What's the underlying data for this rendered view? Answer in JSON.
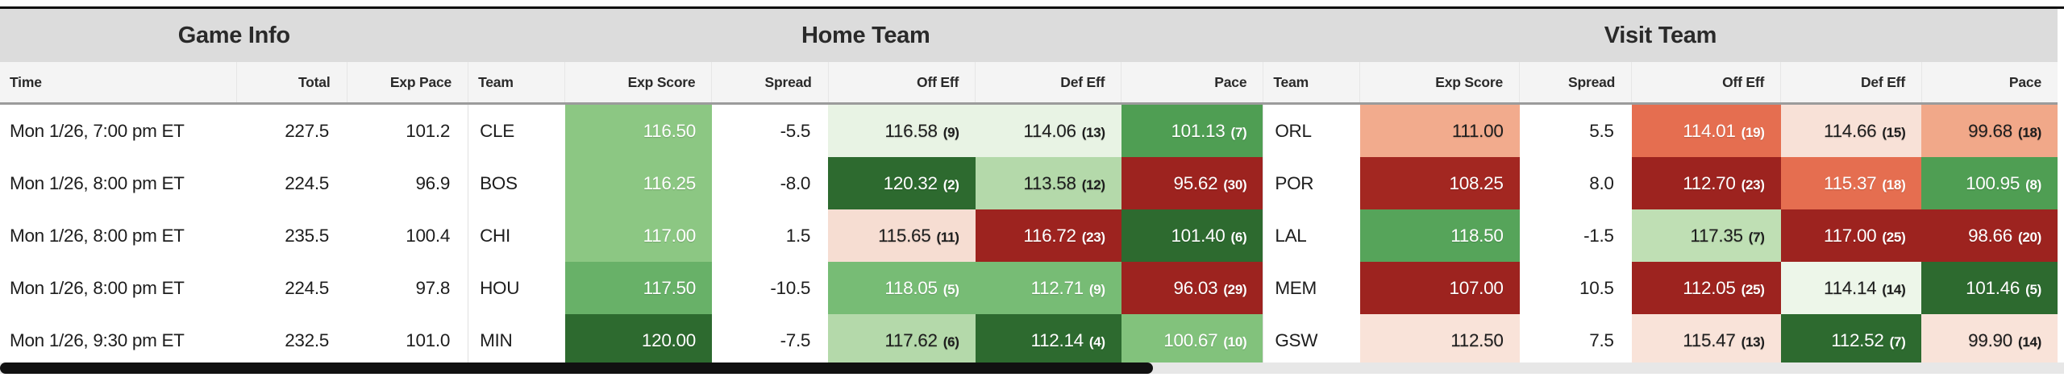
{
  "sections": {
    "game_info": "Game Info",
    "home": "Home Team",
    "visit": "Visit Team"
  },
  "columns": {
    "time": "Time",
    "total": "Total",
    "exp_pace": "Exp Pace",
    "team": "Team",
    "exp_score": "Exp Score",
    "spread": "Spread",
    "off_eff": "Off Eff",
    "def_eff": "Def Eff",
    "pace": "Pace"
  },
  "rows": [
    {
      "time": "Mon 1/26, 7:00 pm ET",
      "total": "227.5",
      "exp_pace": "101.2",
      "home": {
        "team": "CLE",
        "exp_score": {
          "value": "116.50",
          "bg": "#8cc783",
          "fg": "#ffffff"
        },
        "spread": "-5.5",
        "off_eff": {
          "value": "116.58",
          "rank": "(9)",
          "bg": "#e8f3e4",
          "fg": "#1d1d1d"
        },
        "def_eff": {
          "value": "114.06",
          "rank": "(13)",
          "bg": "#e8f3e4",
          "fg": "#1d1d1d"
        },
        "pace": {
          "value": "101.13",
          "rank": "(7)",
          "bg": "#4f9e53",
          "fg": "#ffffff"
        }
      },
      "visit": {
        "team": "ORL",
        "exp_score": {
          "value": "111.00",
          "bg": "#f2ab8d",
          "fg": "#1d1d1d"
        },
        "spread": "5.5",
        "off_eff": {
          "value": "114.01",
          "rank": "(19)",
          "bg": "#e56e50",
          "fg": "#ffffff"
        },
        "def_eff": {
          "value": "114.66",
          "rank": "(15)",
          "bg": "#f8e1d7",
          "fg": "#1d1d1d"
        },
        "pace": {
          "value": "99.68",
          "rank": "(18)",
          "bg": "#f1a889",
          "fg": "#1d1d1d"
        }
      }
    },
    {
      "time": "Mon 1/26, 8:00 pm ET",
      "total": "224.5",
      "exp_pace": "96.9",
      "home": {
        "team": "BOS",
        "exp_score": {
          "value": "116.25",
          "bg": "#8cc783",
          "fg": "#ffffff"
        },
        "spread": "-8.0",
        "off_eff": {
          "value": "120.32",
          "rank": "(2)",
          "bg": "#2d6a2f",
          "fg": "#ffffff"
        },
        "def_eff": {
          "value": "113.58",
          "rank": "(12)",
          "bg": "#b4d9aa",
          "fg": "#1d1d1d"
        },
        "pace": {
          "value": "95.62",
          "rank": "(30)",
          "bg": "#9d231f",
          "fg": "#ffffff"
        }
      },
      "visit": {
        "team": "POR",
        "exp_score": {
          "value": "108.25",
          "bg": "#a32721",
          "fg": "#ffffff"
        },
        "spread": "8.0",
        "off_eff": {
          "value": "112.70",
          "rank": "(23)",
          "bg": "#9d231f",
          "fg": "#ffffff"
        },
        "def_eff": {
          "value": "115.37",
          "rank": "(18)",
          "bg": "#e56e50",
          "fg": "#ffffff"
        },
        "pace": {
          "value": "100.95",
          "rank": "(8)",
          "bg": "#4f9e53",
          "fg": "#ffffff"
        }
      }
    },
    {
      "time": "Mon 1/26, 8:00 pm ET",
      "total": "235.5",
      "exp_pace": "100.4",
      "home": {
        "team": "CHI",
        "exp_score": {
          "value": "117.00",
          "bg": "#8cc783",
          "fg": "#ffffff"
        },
        "spread": "1.5",
        "off_eff": {
          "value": "115.65",
          "rank": "(11)",
          "bg": "#f6ddd2",
          "fg": "#1d1d1d"
        },
        "def_eff": {
          "value": "116.72",
          "rank": "(23)",
          "bg": "#9d231f",
          "fg": "#ffffff"
        },
        "pace": {
          "value": "101.40",
          "rank": "(6)",
          "bg": "#2d6a2f",
          "fg": "#ffffff"
        }
      },
      "visit": {
        "team": "LAL",
        "exp_score": {
          "value": "118.50",
          "bg": "#56a45a",
          "fg": "#ffffff"
        },
        "spread": "-1.5",
        "off_eff": {
          "value": "117.35",
          "rank": "(7)",
          "bg": "#bfdfb4",
          "fg": "#1d1d1d"
        },
        "def_eff": {
          "value": "117.00",
          "rank": "(25)",
          "bg": "#9d231f",
          "fg": "#ffffff"
        },
        "pace": {
          "value": "98.66",
          "rank": "(20)",
          "bg": "#9d231f",
          "fg": "#ffffff"
        }
      }
    },
    {
      "time": "Mon 1/26, 8:00 pm ET",
      "total": "224.5",
      "exp_pace": "97.8",
      "home": {
        "team": "HOU",
        "exp_score": {
          "value": "117.50",
          "bg": "#68b168",
          "fg": "#ffffff"
        },
        "spread": "-10.5",
        "off_eff": {
          "value": "118.05",
          "rank": "(5)",
          "bg": "#77bc75",
          "fg": "#ffffff"
        },
        "def_eff": {
          "value": "112.71",
          "rank": "(9)",
          "bg": "#77bc75",
          "fg": "#ffffff"
        },
        "pace": {
          "value": "96.03",
          "rank": "(29)",
          "bg": "#9d231f",
          "fg": "#ffffff"
        }
      },
      "visit": {
        "team": "MEM",
        "exp_score": {
          "value": "107.00",
          "bg": "#9d231f",
          "fg": "#ffffff"
        },
        "spread": "10.5",
        "off_eff": {
          "value": "112.05",
          "rank": "(25)",
          "bg": "#9d231f",
          "fg": "#ffffff"
        },
        "def_eff": {
          "value": "114.14",
          "rank": "(14)",
          "bg": "#edf6e9",
          "fg": "#1d1d1d"
        },
        "pace": {
          "value": "101.46",
          "rank": "(5)",
          "bg": "#2d6a2f",
          "fg": "#ffffff"
        }
      }
    },
    {
      "time": "Mon 1/26, 9:30 pm ET",
      "total": "232.5",
      "exp_pace": "101.0",
      "home": {
        "team": "MIN",
        "exp_score": {
          "value": "120.00",
          "bg": "#2d6a2f",
          "fg": "#ffffff"
        },
        "spread": "-7.5",
        "off_eff": {
          "value": "117.62",
          "rank": "(6)",
          "bg": "#b4d9aa",
          "fg": "#1d1d1d"
        },
        "def_eff": {
          "value": "112.14",
          "rank": "(4)",
          "bg": "#2d6a2f",
          "fg": "#ffffff"
        },
        "pace": {
          "value": "100.67",
          "rank": "(10)",
          "bg": "#82c27c",
          "fg": "#ffffff"
        }
      },
      "visit": {
        "team": "GSW",
        "exp_score": {
          "value": "112.50",
          "bg": "#f9e3d9",
          "fg": "#1d1d1d"
        },
        "spread": "7.5",
        "off_eff": {
          "value": "115.47",
          "rank": "(13)",
          "bg": "#f9e3d9",
          "fg": "#1d1d1d"
        },
        "def_eff": {
          "value": "112.52",
          "rank": "(7)",
          "bg": "#2d6a2f",
          "fg": "#ffffff"
        },
        "pace": {
          "value": "99.90",
          "rank": "(14)",
          "bg": "#f9e3d9",
          "fg": "#1d1d1d"
        }
      }
    }
  ]
}
